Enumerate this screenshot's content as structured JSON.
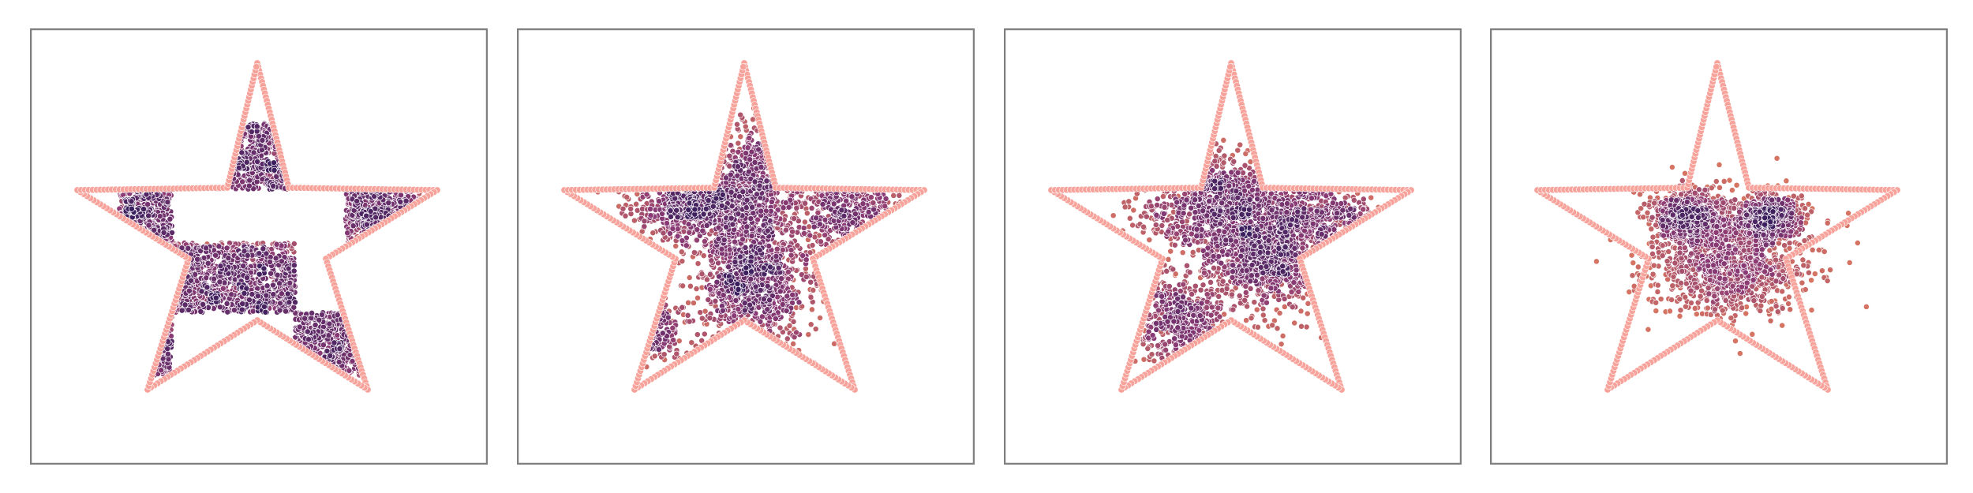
{
  "chart_data": [
    {
      "type": "scatter",
      "title": "",
      "xlabel": "",
      "ylabel": "",
      "grid": false,
      "boundary": "star",
      "pattern": "checkerboard",
      "spread": 0.0,
      "colors": {
        "boundary": "#f7a39b",
        "dense": "#3b1f5e",
        "mid": "#8a3a74",
        "sparse": "#e8825f"
      }
    },
    {
      "type": "scatter",
      "title": "",
      "xlabel": "",
      "ylabel": "",
      "grid": false,
      "boundary": "star",
      "pattern": "diffused-checkerboard",
      "spread": 0.35,
      "colors": {
        "boundary": "#f7a39b",
        "dense": "#3b1f5e",
        "mid": "#8a3a74",
        "sparse": "#e8825f"
      }
    },
    {
      "type": "scatter",
      "title": "",
      "xlabel": "",
      "ylabel": "",
      "grid": false,
      "boundary": "star",
      "pattern": "blobs",
      "spread": 0.65,
      "colors": {
        "boundary": "#f7a39b",
        "dense": "#3b1f5e",
        "mid": "#8a3a74",
        "sparse": "#e8825f"
      }
    },
    {
      "type": "scatter",
      "title": "",
      "xlabel": "",
      "ylabel": "",
      "grid": false,
      "boundary": "star",
      "pattern": "collapsed",
      "spread": 1.0,
      "colors": {
        "boundary": "#f7a39b",
        "dense": "#3b1f5e",
        "mid": "#8a3a74",
        "sparse": "#e8825f"
      }
    }
  ]
}
